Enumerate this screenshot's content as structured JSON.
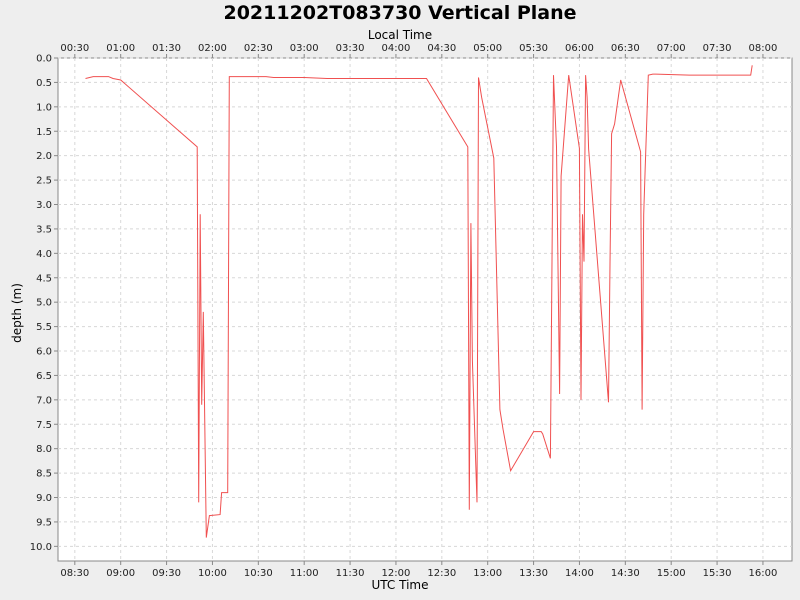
{
  "chart_data": {
    "type": "line",
    "title": "20211202T083730 Vertical Plane",
    "xlabel": "UTC Time",
    "x2label": "Local Time",
    "ylabel": "depth (m)",
    "y_inverted": true,
    "ylim": [
      0.0,
      10.3
    ],
    "xlim": [
      "08:19",
      "16:19"
    ],
    "grid": true,
    "line_color": "#f05050",
    "x_ticks": [
      "08:30",
      "09:00",
      "09:30",
      "10:00",
      "10:30",
      "11:00",
      "11:30",
      "12:00",
      "12:30",
      "13:00",
      "13:30",
      "14:00",
      "14:30",
      "15:00",
      "15:30",
      "16:00"
    ],
    "x2_ticks": [
      "00:30",
      "01:00",
      "01:30",
      "02:00",
      "02:30",
      "03:00",
      "03:30",
      "04:00",
      "04:30",
      "05:00",
      "05:30",
      "06:00",
      "06:30",
      "07:00",
      "07:30",
      "08:00"
    ],
    "y_ticks": [
      "0.0",
      "0.5",
      "1.0",
      "1.5",
      "2.0",
      "2.5",
      "3.0",
      "3.5",
      "4.0",
      "4.5",
      "5.0",
      "5.5",
      "6.0",
      "6.5",
      "7.0",
      "7.5",
      "8.0",
      "8.5",
      "9.0",
      "9.5",
      "10.0"
    ],
    "series": [
      {
        "x": [
          "08:37",
          "08:42",
          "08:52",
          "08:55",
          "09:00",
          "09:50",
          "09:51",
          "09:52",
          "09:53",
          "09:54",
          "09:56",
          "09:58",
          "10:05",
          "10:06",
          "10:10",
          "10:11",
          "10:35",
          "10:40",
          "11:00",
          "11:15",
          "12:00",
          "12:20",
          "12:47",
          "12:48",
          "12:49",
          "12:50",
          "12:53",
          "12:54",
          "12:56",
          "13:04",
          "13:08",
          "13:10",
          "13:15",
          "13:30",
          "13:35",
          "13:36",
          "13:41",
          "13:43",
          "13:45",
          "13:47",
          "13:48",
          "13:53",
          "14:00",
          "14:01",
          "14:02",
          "14:03",
          "14:04",
          "14:05",
          "14:06",
          "14:19",
          "14:20",
          "14:21",
          "14:23",
          "14:27",
          "14:40",
          "14:41",
          "14:42",
          "14:43",
          "14:45",
          "14:48",
          "14:50",
          "15:12",
          "15:20",
          "15:52",
          "15:53"
        ],
        "y": [
          0.42,
          0.38,
          0.38,
          0.42,
          0.45,
          1.82,
          9.1,
          3.2,
          7.1,
          5.2,
          9.82,
          9.37,
          9.35,
          8.9,
          8.9,
          0.38,
          0.38,
          0.4,
          0.4,
          0.42,
          0.42,
          0.42,
          1.82,
          9.25,
          3.38,
          6.2,
          9.1,
          0.4,
          0.8,
          2.05,
          7.2,
          7.6,
          8.45,
          7.65,
          7.65,
          7.7,
          8.2,
          0.35,
          1.82,
          6.88,
          2.42,
          0.35,
          1.85,
          7.0,
          3.2,
          4.17,
          0.35,
          0.8,
          1.86,
          7.05,
          4.22,
          1.55,
          1.35,
          0.45,
          1.92,
          7.2,
          3.2,
          2.25,
          0.35,
          0.33,
          0.33,
          0.35,
          0.35,
          0.35,
          0.15
        ]
      }
    ]
  }
}
